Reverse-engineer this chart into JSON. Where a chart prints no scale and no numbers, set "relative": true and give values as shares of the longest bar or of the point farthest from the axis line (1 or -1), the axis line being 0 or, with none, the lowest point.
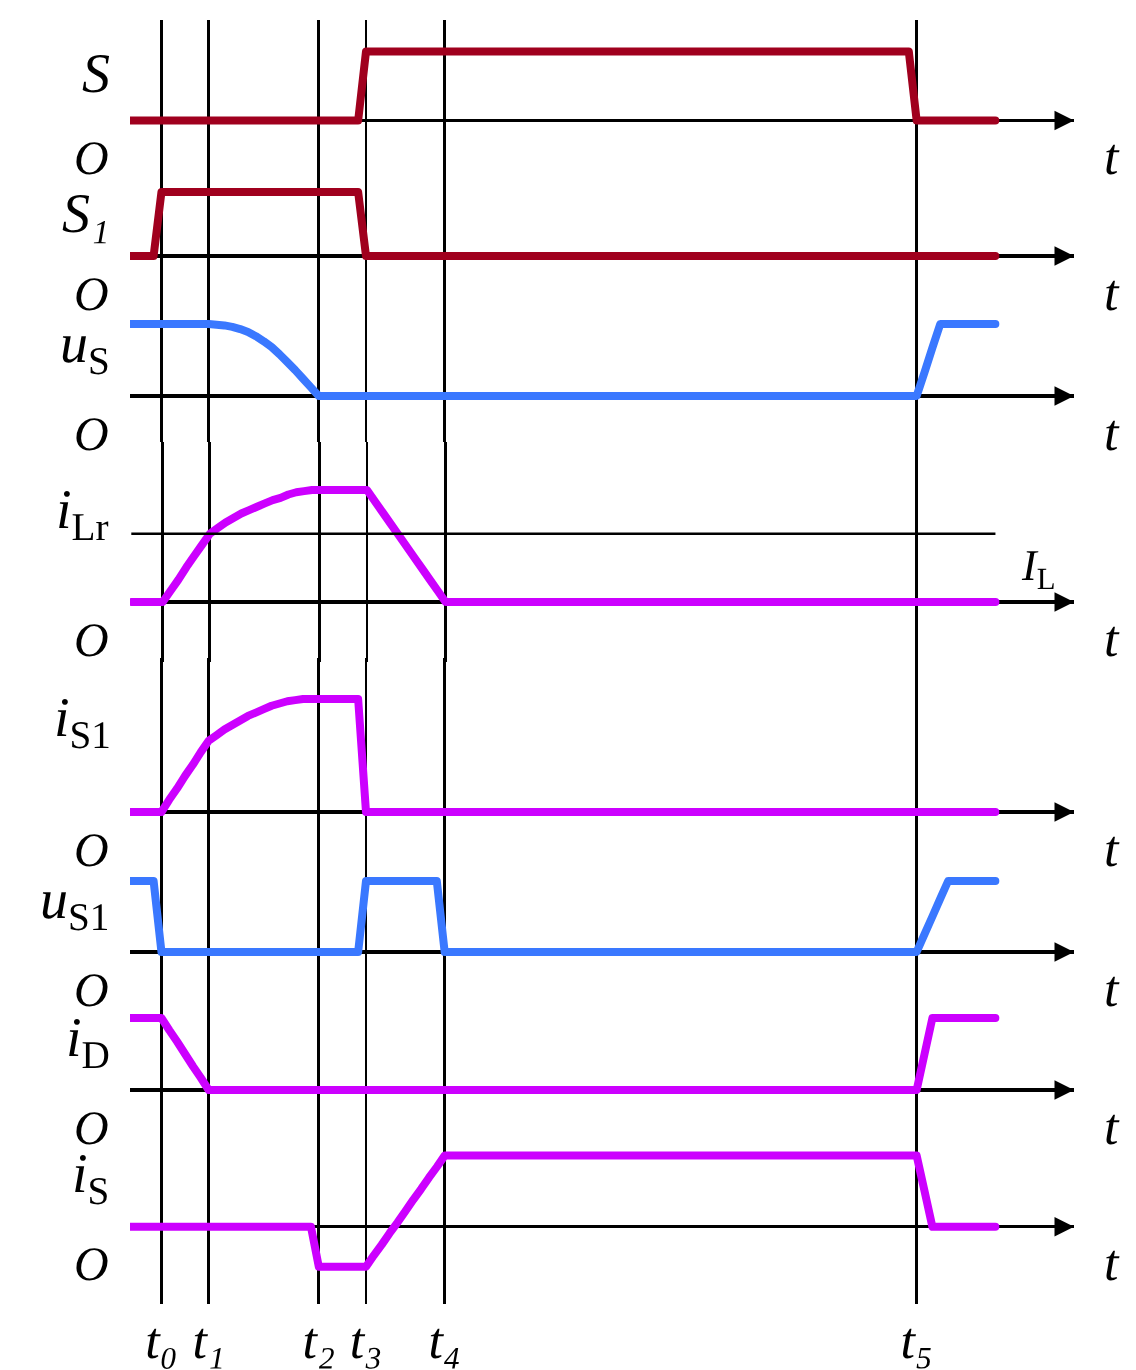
{
  "chart_data": [
    {
      "type": "line",
      "relative": true,
      "ylabel": "S",
      "xlabel": "t",
      "annotations": [
        "O"
      ],
      "grid": "x",
      "categories": [
        null,
        null,
        null,
        null,
        null,
        null,
        null,
        null,
        null,
        null,
        null,
        null,
        null,
        null,
        null,
        null,
        null,
        null,
        null,
        null,
        null,
        null,
        null,
        null,
        null,
        null,
        null,
        null,
        null,
        null,
        null,
        null,
        null,
        null,
        null,
        null,
        null,
        null,
        null,
        null,
        null,
        null,
        null,
        null,
        null,
        null,
        null,
        null,
        null,
        null,
        null,
        null,
        null,
        null,
        null,
        null,
        null,
        null,
        null,
        null,
        null,
        null,
        null,
        null,
        null,
        null,
        null,
        null,
        null,
        null,
        null,
        null,
        null,
        null,
        null,
        null,
        null,
        null,
        null,
        null,
        null,
        null,
        null,
        null,
        null,
        null,
        null,
        null,
        null,
        null,
        null,
        null,
        null,
        null,
        null,
        null,
        null,
        null,
        null,
        null,
        null,
        null,
        null,
        null,
        null,
        null,
        null,
        null,
        null,
        null,
        null,
        null,
        null,
        null,
        null,
        null,
        null,
        null,
        null,
        null,
        null
      ],
      "series": [
        {
          "color": "#a0001e",
          "values": [
            0,
            0,
            0,
            0,
            0,
            0,
            0,
            0,
            0,
            0,
            0,
            0,
            0,
            0,
            0,
            0,
            0,
            0,
            0,
            0,
            0,
            0,
            0,
            0,
            0,
            0,
            0,
            0,
            0,
            0,
            1,
            1,
            1,
            1,
            1,
            1,
            1,
            1,
            1,
            1,
            1,
            1,
            1,
            1,
            1,
            1,
            1,
            1,
            1,
            1,
            1,
            1,
            1,
            1,
            1,
            1,
            1,
            1,
            1,
            1,
            1,
            1,
            1,
            1,
            1,
            1,
            1,
            1,
            1,
            1,
            1,
            1,
            1,
            1,
            1,
            1,
            1,
            1,
            1,
            1,
            1,
            1,
            1,
            1,
            1,
            1,
            1,
            1,
            1,
            1,
            1,
            1,
            1,
            1,
            1,
            1,
            1,
            1,
            1,
            1,
            0,
            0,
            0,
            0,
            0,
            0,
            0,
            0,
            0,
            0,
            0,
            null,
            null,
            null,
            null,
            null,
            null,
            null,
            null,
            null,
            null
          ]
        }
      ]
    },
    {
      "type": "line",
      "relative": true,
      "ylabel": "S₁",
      "xlabel": "t",
      "annotations": [
        "O"
      ],
      "grid": "x",
      "categories": [
        null,
        null,
        null,
        null,
        null,
        null,
        null,
        null,
        null,
        null,
        null,
        null,
        null,
        null,
        null,
        null,
        null,
        null,
        null,
        null,
        null,
        null,
        null,
        null,
        null,
        null,
        null,
        null,
        null,
        null,
        null,
        null,
        null,
        null,
        null,
        null,
        null,
        null,
        null,
        null,
        null,
        null,
        null,
        null,
        null,
        null,
        null,
        null,
        null,
        null,
        null,
        null,
        null,
        null,
        null,
        null,
        null,
        null,
        null,
        null,
        null,
        null,
        null,
        null,
        null,
        null,
        null,
        null,
        null,
        null,
        null,
        null,
        null,
        null,
        null,
        null,
        null,
        null,
        null,
        null,
        null,
        null,
        null,
        null,
        null,
        null,
        null,
        null,
        null,
        null,
        null,
        null,
        null,
        null,
        null,
        null,
        null,
        null,
        null,
        null,
        null,
        null,
        null,
        null,
        null,
        null,
        null,
        null,
        null,
        null,
        null,
        null,
        null,
        null,
        null,
        null,
        null,
        null,
        null,
        null,
        null
      ],
      "series": [
        {
          "color": "#a0001e",
          "values": [
            0,
            0,
            0,
            0,
            1,
            1,
            1,
            1,
            1,
            1,
            1,
            1,
            1,
            1,
            1,
            1,
            1,
            1,
            1,
            1,
            1,
            1,
            1,
            1,
            1,
            1,
            1,
            1,
            1,
            1,
            0,
            0,
            0,
            0,
            0,
            0,
            0,
            0,
            0,
            0,
            0,
            0,
            0,
            0,
            0,
            0,
            0,
            0,
            0,
            0,
            0,
            0,
            0,
            0,
            0,
            0,
            0,
            0,
            0,
            0,
            0,
            0,
            0,
            0,
            0,
            0,
            0,
            0,
            0,
            0,
            0,
            0,
            0,
            0,
            0,
            0,
            0,
            0,
            0,
            0,
            0,
            0,
            0,
            0,
            0,
            0,
            0,
            0,
            0,
            0,
            0,
            0,
            0,
            0,
            0,
            0,
            0,
            0,
            0,
            0,
            0,
            0,
            0,
            0,
            0,
            0,
            0,
            0,
            0,
            0,
            0,
            null,
            null,
            null,
            null,
            null,
            null,
            null,
            null,
            null,
            null
          ]
        }
      ]
    },
    {
      "type": "line",
      "relative": true,
      "ylabel": "u$_{S}$",
      "xlabel": "t",
      "annotations": [
        "O"
      ],
      "grid": "x",
      "categories": [
        null,
        null,
        null,
        null,
        null,
        null,
        null,
        null,
        null,
        null,
        null,
        null,
        null,
        null,
        null,
        null,
        null,
        null,
        null,
        null,
        null,
        null,
        null,
        null,
        null,
        null,
        null,
        null,
        null,
        null,
        null,
        null,
        null,
        null,
        null,
        null,
        null,
        null,
        null,
        null,
        null,
        null,
        null,
        null,
        null,
        null,
        null,
        null,
        null,
        null,
        null,
        null,
        null,
        null,
        null,
        null,
        null,
        null,
        null,
        null,
        null,
        null,
        null,
        null,
        null,
        null,
        null,
        null,
        null,
        null,
        null,
        null,
        null,
        null,
        null,
        null,
        null,
        null,
        null,
        null,
        null,
        null,
        null,
        null,
        null,
        null,
        null,
        null,
        null,
        null,
        null,
        null,
        null,
        null,
        null,
        null,
        null,
        null,
        null,
        null,
        null,
        null,
        null,
        null,
        null,
        null,
        null,
        null,
        null,
        null,
        null,
        null,
        null,
        null,
        null,
        null,
        null,
        null,
        null,
        null,
        null
      ],
      "series": [
        {
          "color": "#3a78ff",
          "values": [
            1,
            1,
            1,
            1,
            1,
            1,
            1,
            1,
            1,
            1,
            1,
            0.99,
            0.98,
            0.96,
            0.93,
            0.89,
            0.83,
            0.76,
            0.68,
            0.58,
            0.47,
            0.36,
            0.24,
            0.12,
            0,
            0,
            0,
            0,
            0,
            0,
            0,
            0,
            0,
            0,
            0,
            0,
            0,
            0,
            0,
            0,
            0,
            0,
            0,
            0,
            0,
            0,
            0,
            0,
            0,
            0,
            0,
            0,
            0,
            0,
            0,
            0,
            0,
            0,
            0,
            0,
            0,
            0,
            0,
            0,
            0,
            0,
            0,
            0,
            0,
            0,
            0,
            0,
            0,
            0,
            0,
            0,
            0,
            0,
            0,
            0,
            0,
            0,
            0,
            0,
            0,
            0,
            0,
            0,
            0,
            0,
            0,
            0,
            0,
            0,
            0,
            0,
            0,
            0,
            0,
            0,
            0,
            0.33,
            0.67,
            1,
            1,
            1,
            1,
            1,
            1,
            1,
            1,
            null,
            null,
            null,
            null,
            null,
            null,
            null,
            null,
            null,
            null
          ]
        }
      ]
    },
    {
      "type": "line",
      "relative": true,
      "ylabel": "i$_{Lr}$",
      "xlabel": "t",
      "annotations": [
        "O"
      ],
      "grid": "x",
      "ref_lines": [
        {
          "axis": "y",
          "value": 0.61,
          "label": "I$_{L}$"
        }
      ],
      "categories": [
        null,
        null,
        null,
        null,
        null,
        null,
        null,
        null,
        null,
        null,
        null,
        null,
        null,
        null,
        null,
        null,
        null,
        null,
        null,
        null,
        null,
        null,
        null,
        null,
        null,
        null,
        null,
        null,
        null,
        null,
        null,
        null,
        null,
        null,
        null,
        null,
        null,
        null,
        null,
        null,
        null,
        null,
        null,
        null,
        null,
        null,
        null,
        null,
        null,
        null,
        null,
        null,
        null,
        null,
        null,
        null,
        null,
        null,
        null,
        null,
        null,
        null,
        null,
        null,
        null,
        null,
        null,
        null,
        null,
        null,
        null,
        null,
        null,
        null,
        null,
        null,
        null,
        null,
        null,
        null,
        null,
        null,
        null,
        null,
        null,
        null,
        null,
        null,
        null,
        null,
        null,
        null,
        null,
        null,
        null,
        null,
        null,
        null,
        null,
        null,
        null,
        null,
        null,
        null,
        null,
        null,
        null,
        null,
        null,
        null,
        null,
        null,
        null,
        null,
        null,
        null,
        null,
        null,
        null,
        null,
        null
      ],
      "series": [
        {
          "color": "#cc00ff",
          "values": [
            0,
            0,
            0,
            0,
            0,
            0.1,
            0.2,
            0.31,
            0.41,
            0.51,
            0.61,
            0.66,
            0.71,
            0.75,
            0.79,
            0.82,
            0.85,
            0.88,
            0.91,
            0.93,
            0.96,
            0.98,
            0.99,
            1,
            1,
            1,
            1,
            1,
            1,
            1,
            1,
            0.9,
            0.8,
            0.7,
            0.6,
            0.5,
            0.4,
            0.3,
            0.2,
            0.1,
            0,
            0,
            0,
            0,
            0,
            0,
            0,
            0,
            0,
            0,
            0,
            0,
            0,
            0,
            0,
            0,
            0,
            0,
            0,
            0,
            0,
            0,
            0,
            0,
            0,
            0,
            0,
            0,
            0,
            0,
            0,
            0,
            0,
            0,
            0,
            0,
            0,
            0,
            0,
            0,
            0,
            0,
            0,
            0,
            0,
            0,
            0,
            0,
            0,
            0,
            0,
            0,
            0,
            0,
            0,
            0,
            0,
            0,
            0,
            0,
            0,
            0,
            0,
            0,
            0,
            0,
            0,
            0,
            0,
            0,
            0,
            null,
            null,
            null,
            null,
            null,
            null,
            null,
            null,
            null,
            null
          ]
        }
      ]
    },
    {
      "type": "line",
      "relative": true,
      "ylabel": "i$_{S1}$",
      "xlabel": "t",
      "annotations": [
        "O"
      ],
      "grid": "x",
      "categories": [
        null,
        null,
        null,
        null,
        null,
        null,
        null,
        null,
        null,
        null,
        null,
        null,
        null,
        null,
        null,
        null,
        null,
        null,
        null,
        null,
        null,
        null,
        null,
        null,
        null,
        null,
        null,
        null,
        null,
        null,
        null,
        null,
        null,
        null,
        null,
        null,
        null,
        null,
        null,
        null,
        null,
        null,
        null,
        null,
        null,
        null,
        null,
        null,
        null,
        null,
        null,
        null,
        null,
        null,
        null,
        null,
        null,
        null,
        null,
        null,
        null,
        null,
        null,
        null,
        null,
        null,
        null,
        null,
        null,
        null,
        null,
        null,
        null,
        null,
        null,
        null,
        null,
        null,
        null,
        null,
        null,
        null,
        null,
        null,
        null,
        null,
        null,
        null,
        null,
        null,
        null,
        null,
        null,
        null,
        null,
        null,
        null,
        null,
        null,
        null,
        null,
        null,
        null,
        null,
        null,
        null,
        null,
        null,
        null,
        null,
        null,
        null,
        null,
        null,
        null,
        null,
        null,
        null,
        null,
        null,
        null
      ],
      "series": [
        {
          "color": "#cc00ff",
          "values": [
            0,
            0,
            0,
            0,
            0,
            0.11,
            0.21,
            0.32,
            0.42,
            0.53,
            0.63,
            0.68,
            0.73,
            0.77,
            0.81,
            0.85,
            0.88,
            0.91,
            0.94,
            0.96,
            0.98,
            0.99,
            1,
            1,
            1,
            1,
            1,
            1,
            1,
            1,
            0,
            0,
            0,
            0,
            0,
            0,
            0,
            0,
            0,
            0,
            0,
            0,
            0,
            0,
            0,
            0,
            0,
            0,
            0,
            0,
            0,
            0,
            0,
            0,
            0,
            0,
            0,
            0,
            0,
            0,
            0,
            0,
            0,
            0,
            0,
            0,
            0,
            0,
            0,
            0,
            0,
            0,
            0,
            0,
            0,
            0,
            0,
            0,
            0,
            0,
            0,
            0,
            0,
            0,
            0,
            0,
            0,
            0,
            0,
            0,
            0,
            0,
            0,
            0,
            0,
            0,
            0,
            0,
            0,
            0,
            0,
            0,
            0,
            0,
            0,
            0,
            0,
            0,
            0,
            0,
            0,
            null,
            null,
            null,
            null,
            null,
            null,
            null,
            null,
            null,
            null
          ]
        }
      ]
    },
    {
      "type": "line",
      "relative": true,
      "ylabel": "u$_{S1}$",
      "xlabel": "t",
      "annotations": [
        "O"
      ],
      "grid": "x",
      "categories": [
        null,
        null,
        null,
        null,
        null,
        null,
        null,
        null,
        null,
        null,
        null,
        null,
        null,
        null,
        null,
        null,
        null,
        null,
        null,
        null,
        null,
        null,
        null,
        null,
        null,
        null,
        null,
        null,
        null,
        null,
        null,
        null,
        null,
        null,
        null,
        null,
        null,
        null,
        null,
        null,
        null,
        null,
        null,
        null,
        null,
        null,
        null,
        null,
        null,
        null,
        null,
        null,
        null,
        null,
        null,
        null,
        null,
        null,
        null,
        null,
        null,
        null,
        null,
        null,
        null,
        null,
        null,
        null,
        null,
        null,
        null,
        null,
        null,
        null,
        null,
        null,
        null,
        null,
        null,
        null,
        null,
        null,
        null,
        null,
        null,
        null,
        null,
        null,
        null,
        null,
        null,
        null,
        null,
        null,
        null,
        null,
        null,
        null,
        null,
        null,
        null,
        null,
        null,
        null,
        null,
        null,
        null,
        null,
        null,
        null,
        null,
        null,
        null,
        null,
        null,
        null,
        null,
        null,
        null,
        null,
        null
      ],
      "series": [
        {
          "color": "#3a78ff",
          "values": [
            1,
            1,
            1,
            1,
            0,
            0,
            0,
            0,
            0,
            0,
            0,
            0,
            0,
            0,
            0,
            0,
            0,
            0,
            0,
            0,
            0,
            0,
            0,
            0,
            0,
            0,
            0,
            0,
            0,
            0,
            1,
            1,
            1,
            1,
            1,
            1,
            1,
            1,
            1,
            1,
            0,
            0,
            0,
            0,
            0,
            0,
            0,
            0,
            0,
            0,
            0,
            0,
            0,
            0,
            0,
            0,
            0,
            0,
            0,
            0,
            0,
            0,
            0,
            0,
            0,
            0,
            0,
            0,
            0,
            0,
            0,
            0,
            0,
            0,
            0,
            0,
            0,
            0,
            0,
            0,
            0,
            0,
            0,
            0,
            0,
            0,
            0,
            0,
            0,
            0,
            0,
            0,
            0,
            0,
            0,
            0,
            0,
            0,
            0,
            0,
            0,
            0.25,
            0.5,
            0.75,
            1,
            1,
            1,
            1,
            1,
            1,
            1,
            null,
            null,
            null,
            null,
            null,
            null,
            null,
            null,
            null,
            null
          ]
        }
      ]
    },
    {
      "type": "line",
      "relative": true,
      "ylabel": "i$_{D}$",
      "xlabel": "t",
      "annotations": [
        "O"
      ],
      "grid": "x",
      "categories": [
        null,
        null,
        null,
        null,
        null,
        null,
        null,
        null,
        null,
        null,
        null,
        null,
        null,
        null,
        null,
        null,
        null,
        null,
        null,
        null,
        null,
        null,
        null,
        null,
        null,
        null,
        null,
        null,
        null,
        null,
        null,
        null,
        null,
        null,
        null,
        null,
        null,
        null,
        null,
        null,
        null,
        null,
        null,
        null,
        null,
        null,
        null,
        null,
        null,
        null,
        null,
        null,
        null,
        null,
        null,
        null,
        null,
        null,
        null,
        null,
        null,
        null,
        null,
        null,
        null,
        null,
        null,
        null,
        null,
        null,
        null,
        null,
        null,
        null,
        null,
        null,
        null,
        null,
        null,
        null,
        null,
        null,
        null,
        null,
        null,
        null,
        null,
        null,
        null,
        null,
        null,
        null,
        null,
        null,
        null,
        null,
        null,
        null,
        null,
        null,
        null,
        null,
        null,
        null,
        null,
        null,
        null,
        null,
        null,
        null,
        null,
        null,
        null,
        null,
        null,
        null,
        null,
        null,
        null,
        null,
        null
      ],
      "series": [
        {
          "color": "#cc00ff",
          "values": [
            1,
            1,
            1,
            1,
            1,
            0.83,
            0.67,
            0.5,
            0.33,
            0.17,
            0,
            0,
            0,
            0,
            0,
            0,
            0,
            0,
            0,
            0,
            0,
            0,
            0,
            0,
            0,
            0,
            0,
            0,
            0,
            0,
            0,
            0,
            0,
            0,
            0,
            0,
            0,
            0,
            0,
            0,
            0,
            0,
            0,
            0,
            0,
            0,
            0,
            0,
            0,
            0,
            0,
            0,
            0,
            0,
            0,
            0,
            0,
            0,
            0,
            0,
            0,
            0,
            0,
            0,
            0,
            0,
            0,
            0,
            0,
            0,
            0,
            0,
            0,
            0,
            0,
            0,
            0,
            0,
            0,
            0,
            0,
            0,
            0,
            0,
            0,
            0,
            0,
            0,
            0,
            0,
            0,
            0,
            0,
            0,
            0,
            0,
            0,
            0,
            0,
            0,
            0,
            0.5,
            1,
            1,
            1,
            1,
            1,
            1,
            1,
            1,
            1,
            null,
            null,
            null,
            null,
            null,
            null,
            null,
            null,
            null,
            null
          ]
        }
      ]
    },
    {
      "type": "line",
      "relative": true,
      "ylabel": "i$_{S}$",
      "xlabel": "t",
      "annotations": [
        "O"
      ],
      "grid": "x",
      "tick_labels": "x",
      "categories": [
        null,
        null,
        null,
        null,
        "t₀",
        null,
        null,
        null,
        null,
        null,
        "t₁",
        null,
        null,
        null,
        null,
        null,
        null,
        null,
        null,
        null,
        null,
        null,
        null,
        null,
        "t₂",
        null,
        null,
        null,
        null,
        null,
        "t₃",
        null,
        null,
        null,
        null,
        null,
        null,
        null,
        null,
        null,
        "t₄",
        null,
        null,
        null,
        null,
        null,
        null,
        null,
        null,
        null,
        null,
        null,
        null,
        null,
        null,
        null,
        null,
        null,
        null,
        null,
        null,
        null,
        null,
        null,
        null,
        null,
        null,
        null,
        null,
        null,
        null,
        null,
        null,
        null,
        null,
        null,
        null,
        null,
        null,
        null,
        null,
        null,
        null,
        null,
        null,
        null,
        null,
        null,
        null,
        null,
        null,
        null,
        null,
        null,
        null,
        null,
        null,
        null,
        null,
        null,
        "t₅",
        null,
        null,
        null,
        null,
        null,
        null,
        null,
        null,
        null,
        null,
        null,
        null,
        null,
        null,
        null,
        null,
        null,
        null,
        null,
        null
      ],
      "series": [
        {
          "color": "#cc00ff",
          "values": [
            0,
            0,
            0,
            0,
            0,
            0,
            0,
            0,
            0,
            0,
            0,
            0,
            0,
            0,
            0,
            0,
            0,
            0,
            0,
            0,
            0,
            0,
            0,
            0,
            -0.56,
            -0.56,
            -0.56,
            -0.56,
            -0.56,
            -0.56,
            -0.56,
            -0.4,
            -0.25,
            -0.09,
            0.06,
            0.22,
            0.38,
            0.53,
            0.69,
            0.84,
            1,
            1,
            1,
            1,
            1,
            1,
            1,
            1,
            1,
            1,
            1,
            1,
            1,
            1,
            1,
            1,
            1,
            1,
            1,
            1,
            1,
            1,
            1,
            1,
            1,
            1,
            1,
            1,
            1,
            1,
            1,
            1,
            1,
            1,
            1,
            1,
            1,
            1,
            1,
            1,
            1,
            1,
            1,
            1,
            1,
            1,
            1,
            1,
            1,
            1,
            1,
            1,
            1,
            1,
            1,
            1,
            1,
            1,
            1,
            1,
            1,
            0.5,
            0,
            0,
            0,
            0,
            0,
            0,
            0,
            0,
            0,
            null,
            null,
            null,
            null,
            null,
            null,
            null,
            null,
            null,
            null
          ]
        }
      ]
    }
  ]
}
